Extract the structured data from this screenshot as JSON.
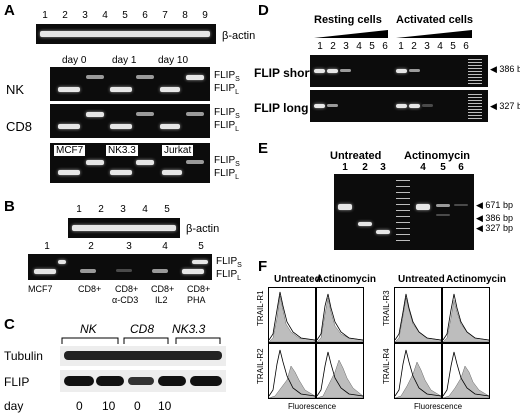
{
  "panelA": {
    "letter": "A",
    "lanes": [
      "1",
      "2",
      "3",
      "4",
      "5",
      "6",
      "7",
      "8",
      "9"
    ],
    "actin": "β-actin",
    "row_nk": "NK",
    "row_cd8": "CD8",
    "days": [
      "day 0",
      "day 1",
      "day 10"
    ],
    "flips": "FLIP",
    "flips_sub": "S",
    "flipl": "FLIP",
    "flipl_sub": "L",
    "cells": [
      "MCF7",
      "NK3.3",
      "Jurkat"
    ]
  },
  "panelB": {
    "letter": "B",
    "lanes_top": [
      "1",
      "2",
      "3",
      "4",
      "5"
    ],
    "actin": "β-actin",
    "lanes_bottom": [
      "1",
      "2",
      "3",
      "4",
      "5"
    ],
    "conds": [
      "MCF7",
      "CD8+",
      "CD8+",
      "CD8+",
      "CD8+"
    ],
    "conds2": [
      "",
      "",
      "α-CD3",
      "IL2",
      "PHA"
    ],
    "flips": "FLIP",
    "flips_sub": "S",
    "flipl": "FLIP",
    "flipl_sub": "L"
  },
  "panelC": {
    "letter": "C",
    "groups": [
      "NK",
      "CD8",
      "NK3.3"
    ],
    "tubulin": "Tubulin",
    "flip": "FLIP",
    "day_label": "day",
    "days": [
      "0",
      "10",
      "0",
      "10"
    ]
  },
  "panelD": {
    "letter": "D",
    "resting": "Resting cells",
    "activated": "Activated cells",
    "lanes": [
      "1",
      "2",
      "3",
      "4",
      "5",
      "6",
      "1",
      "2",
      "3",
      "4",
      "5",
      "6"
    ],
    "row_short": "FLIP short",
    "row_long": "FLIP long",
    "bp_short": "386 bp",
    "bp_long": "327 bp"
  },
  "panelE": {
    "letter": "E",
    "untreated": "Untreated",
    "actinomycin": "Actinomycin",
    "lanes": [
      "1",
      "2",
      "3",
      "4",
      "5",
      "6"
    ],
    "bp": [
      "671 bp",
      "386 bp",
      "327 bp"
    ]
  },
  "panelF": {
    "letter": "F",
    "untreated": "Untreated",
    "actinomycin": "Actinomycin",
    "receptors": [
      "TRAIL-R1",
      "TRAIL-R2",
      "TRAIL-R3",
      "TRAIL-R4"
    ],
    "xlabel": "Fluorescence"
  }
}
